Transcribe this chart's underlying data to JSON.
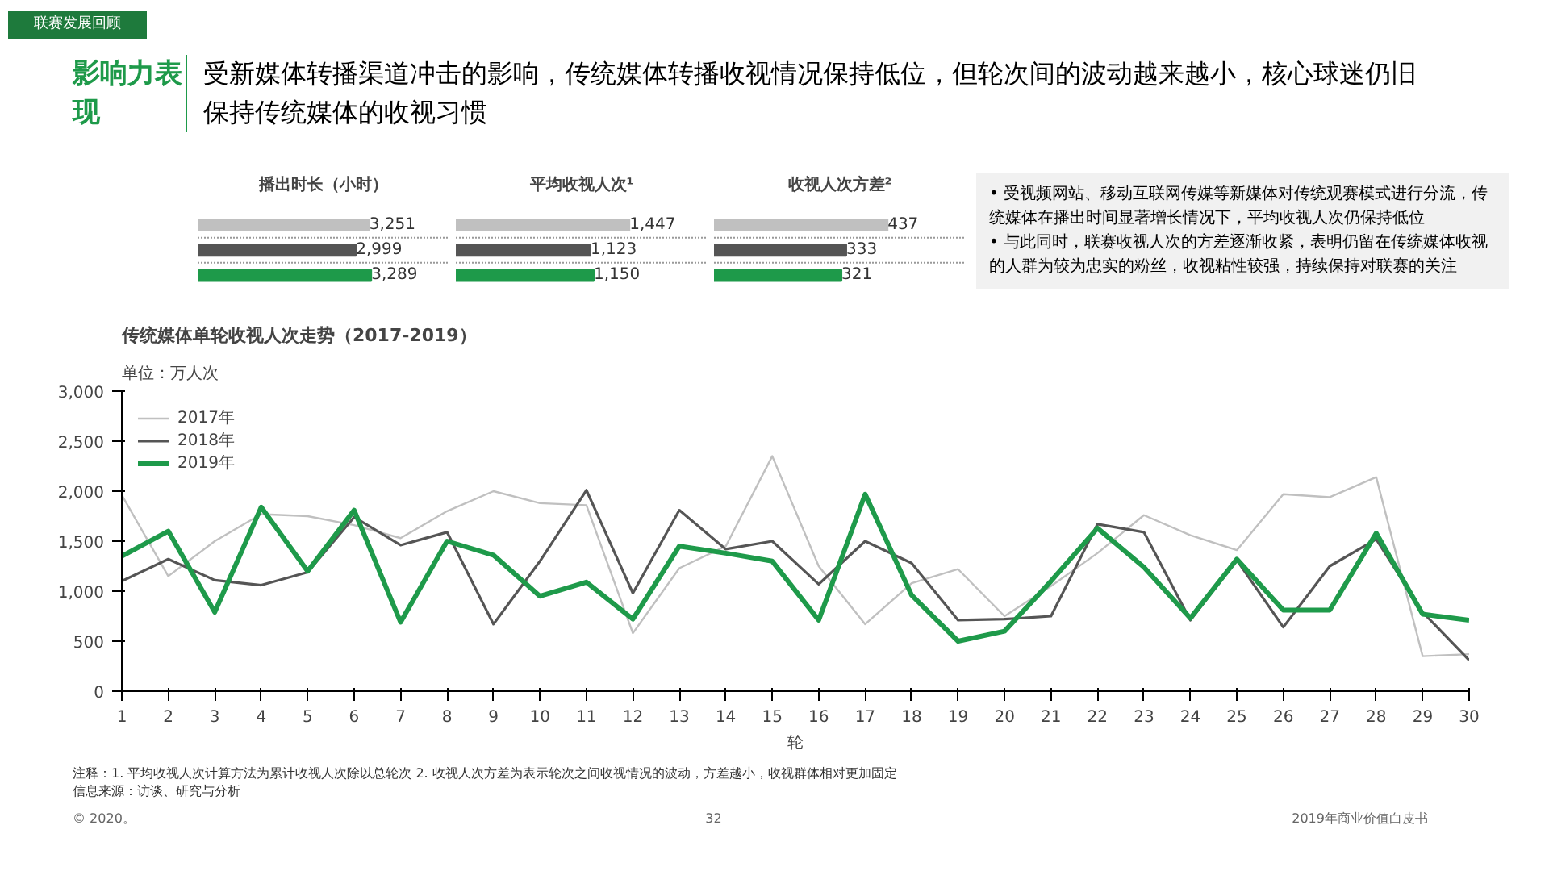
{
  "chart_data": [
    {
      "type": "line",
      "title": "传统媒体单轮收视人次走势（2017-2019）",
      "subtitle": "单位：万人次",
      "xlabel": "轮",
      "x": [
        1,
        2,
        3,
        4,
        5,
        6,
        7,
        8,
        9,
        10,
        11,
        12,
        13,
        14,
        15,
        16,
        17,
        18,
        19,
        20,
        21,
        22,
        23,
        24,
        25,
        26,
        27,
        28,
        29,
        30
      ],
      "series": [
        {
          "name": "2017年",
          "color": "#c0c0c0",
          "values": [
            1960,
            1150,
            1500,
            1770,
            1750,
            1660,
            1530,
            1800,
            2000,
            1880,
            1860,
            580,
            1230,
            1450,
            2350,
            1250,
            670,
            1080,
            1220,
            750,
            1050,
            1380,
            1760,
            1560,
            1410,
            1970,
            1940,
            2140,
            350,
            370
          ]
        },
        {
          "name": "2018年",
          "color": "#555555",
          "values": [
            1100,
            1320,
            1110,
            1060,
            1190,
            1740,
            1460,
            1590,
            670,
            1300,
            2010,
            980,
            1810,
            1420,
            1500,
            1070,
            1500,
            1280,
            710,
            720,
            750,
            1670,
            1590,
            710,
            1310,
            640,
            1250,
            1520,
            790,
            310
          ]
        },
        {
          "name": "2019年",
          "color": "#1e9a4a",
          "values": [
            1350,
            1600,
            790,
            1840,
            1200,
            1810,
            690,
            1500,
            1360,
            950,
            1090,
            720,
            1450,
            1380,
            1300,
            710,
            1970,
            960,
            500,
            600,
            1100,
            1630,
            1240,
            730,
            1320,
            810,
            810,
            1580,
            770,
            710
          ]
        }
      ],
      "xlim": [
        1,
        30
      ],
      "xticks": [
        1,
        2,
        3,
        4,
        5,
        6,
        7,
        8,
        9,
        10,
        11,
        12,
        13,
        14,
        15,
        16,
        17,
        18,
        19,
        20,
        21,
        22,
        23,
        24,
        25,
        26,
        27,
        28,
        29,
        30
      ],
      "ylim": [
        0,
        3000
      ],
      "yticks": [
        0,
        500,
        {
          "value": 1000,
          "label": "1,000"
        },
        {
          "value": 1500,
          "label": "1,500"
        },
        {
          "value": 2000,
          "label": "2,000"
        },
        {
          "value": 2500,
          "label": "2,500"
        },
        {
          "value": 3000,
          "label": "3,000"
        }
      ],
      "grid": false,
      "legend": "top left",
      "marker": "none",
      "line_style": "solid",
      "annotations": [
        "联赛发展回顾",
        "影响力表现",
        "受新媒体转播渠道冲击的影响，传统媒体转播收视情况保持低位，但轮次间的波动越来越小，核心球迷仍旧保持传统媒体的收视习惯",
        "• 受视频网站、移动互联网传媒等新媒体对传统观赛模式进行分流，传统媒体在播出时间显著增长情况下，平均收视人次仍保持低位",
        "• 与此同时，联赛收视人次的方差逐渐收紧，表明仍留在传统媒体收视的人群为较为忠实的粉丝，收视粘性较强，持续保持对联赛的关注",
        "注释：1. 平均收视人次计算方法为累计收视人次除以总轮次 2. 收视人次方差为表示轮次之间收视情况的波动，方差越小，收视群体相对更加固定",
        "信息来源：访谈、研究与分析",
        "© 2020。",
        "32",
        "2019年商业价值白皮书"
      ]
    },
    {
      "type": "bar",
      "orientation": "horizontal",
      "title": "播出时长（小时）",
      "categories": [
        null,
        null,
        null
      ],
      "values": [
        3251,
        2999,
        3289
      ],
      "colors": [
        "#c0c0c0",
        "#555555",
        "#1e9a4a"
      ],
      "value_labels": [
        "3,251",
        "2,999",
        "3,289"
      ]
    },
    {
      "type": "bar",
      "orientation": "horizontal",
      "title": "平均收视人次¹",
      "categories": [
        null,
        null,
        null
      ],
      "values": [
        1447,
        1123,
        1150
      ],
      "colors": [
        "#c0c0c0",
        "#555555",
        "#1e9a4a"
      ],
      "value_labels": [
        "1,447",
        "1,123",
        "1,150"
      ]
    },
    {
      "type": "bar",
      "orientation": "horizontal",
      "title": "收视人次方差²",
      "categories": [
        null,
        null,
        null
      ],
      "values": [
        437,
        333,
        321
      ],
      "colors": [
        "#c0c0c0",
        "#555555",
        "#1e9a4a"
      ],
      "value_labels": [
        "437",
        "333",
        "321"
      ]
    }
  ]
}
